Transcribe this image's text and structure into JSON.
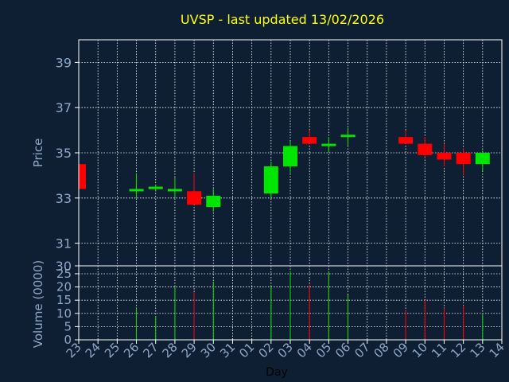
{
  "chart_data": {
    "type": "candlestick",
    "title": "UVSP - last updated 13/02/2026",
    "xlabel": "Day",
    "price_panel": {
      "ylabel": "Price",
      "ylim": [
        30,
        40
      ],
      "yticks": [
        31,
        33,
        35,
        37,
        39
      ]
    },
    "volume_panel": {
      "ylabel": "Volume (0000)",
      "ylim": [
        0,
        28
      ],
      "yticks": [
        0,
        5,
        10,
        15,
        20,
        25
      ]
    },
    "x_ticks": [
      "23",
      "24",
      "25",
      "26",
      "27",
      "28",
      "29",
      "30",
      "31",
      "01",
      "02",
      "03",
      "04",
      "05",
      "06",
      "07",
      "08",
      "09",
      "10",
      "11",
      "12",
      "13",
      "14"
    ],
    "grid": true,
    "colors": {
      "background": "#0f1f33",
      "title": "#ffff00",
      "axis_text": "#8ea8c8",
      "axis_line": "#ffffff",
      "up": "#00e600",
      "down": "#ff0000",
      "grid": "#ffffff"
    },
    "candles": [
      {
        "day": "23",
        "open": 34.5,
        "high": 34.5,
        "low": 33.4,
        "close": 33.4
      },
      {
        "day": "26",
        "open": 33.3,
        "high": 34.1,
        "low": 33.0,
        "close": 33.4
      },
      {
        "day": "27",
        "open": 33.4,
        "high": 33.6,
        "low": 33.3,
        "close": 33.5
      },
      {
        "day": "28",
        "open": 33.4,
        "high": 33.9,
        "low": 33.0,
        "close": 33.4
      },
      {
        "day": "29",
        "open": 33.3,
        "high": 34.1,
        "low": 32.7,
        "close": 32.7
      },
      {
        "day": "30",
        "open": 32.6,
        "high": 33.4,
        "low": 32.4,
        "close": 33.1
      },
      {
        "day": "02",
        "open": 33.2,
        "high": 34.6,
        "low": 33.0,
        "close": 34.4
      },
      {
        "day": "03",
        "open": 34.4,
        "high": 35.5,
        "low": 34.1,
        "close": 35.3
      },
      {
        "day": "04",
        "open": 35.7,
        "high": 36.0,
        "low": 35.4,
        "close": 35.4
      },
      {
        "day": "05",
        "open": 35.3,
        "high": 35.7,
        "low": 35.0,
        "close": 35.4
      },
      {
        "day": "06",
        "open": 35.7,
        "high": 36.1,
        "low": 35.3,
        "close": 35.8
      },
      {
        "day": "09",
        "open": 35.7,
        "high": 36.0,
        "low": 35.4,
        "close": 35.4
      },
      {
        "day": "10",
        "open": 35.4,
        "high": 35.7,
        "low": 34.8,
        "close": 34.9
      },
      {
        "day": "11",
        "open": 35.0,
        "high": 35.4,
        "low": 34.4,
        "close": 34.7
      },
      {
        "day": "12",
        "open": 35.0,
        "high": 35.2,
        "low": 34.0,
        "close": 34.5
      },
      {
        "day": "13",
        "open": 34.5,
        "high": 35.1,
        "low": 34.2,
        "close": 35.0
      }
    ],
    "volume": [
      {
        "day": "26",
        "value": 12,
        "direction": "up"
      },
      {
        "day": "27",
        "value": 9,
        "direction": "up"
      },
      {
        "day": "28",
        "value": 20,
        "direction": "up"
      },
      {
        "day": "29",
        "value": 18,
        "direction": "down"
      },
      {
        "day": "30",
        "value": 22,
        "direction": "up"
      },
      {
        "day": "02",
        "value": 20,
        "direction": "up"
      },
      {
        "day": "03",
        "value": 26,
        "direction": "up"
      },
      {
        "day": "04",
        "value": 21,
        "direction": "down"
      },
      {
        "day": "05",
        "value": 26,
        "direction": "up"
      },
      {
        "day": "06",
        "value": 17,
        "direction": "up"
      },
      {
        "day": "09",
        "value": 11,
        "direction": "down"
      },
      {
        "day": "10",
        "value": 15,
        "direction": "down"
      },
      {
        "day": "11",
        "value": 12,
        "direction": "down"
      },
      {
        "day": "12",
        "value": 13,
        "direction": "down"
      },
      {
        "day": "13",
        "value": 10,
        "direction": "up"
      }
    ]
  }
}
